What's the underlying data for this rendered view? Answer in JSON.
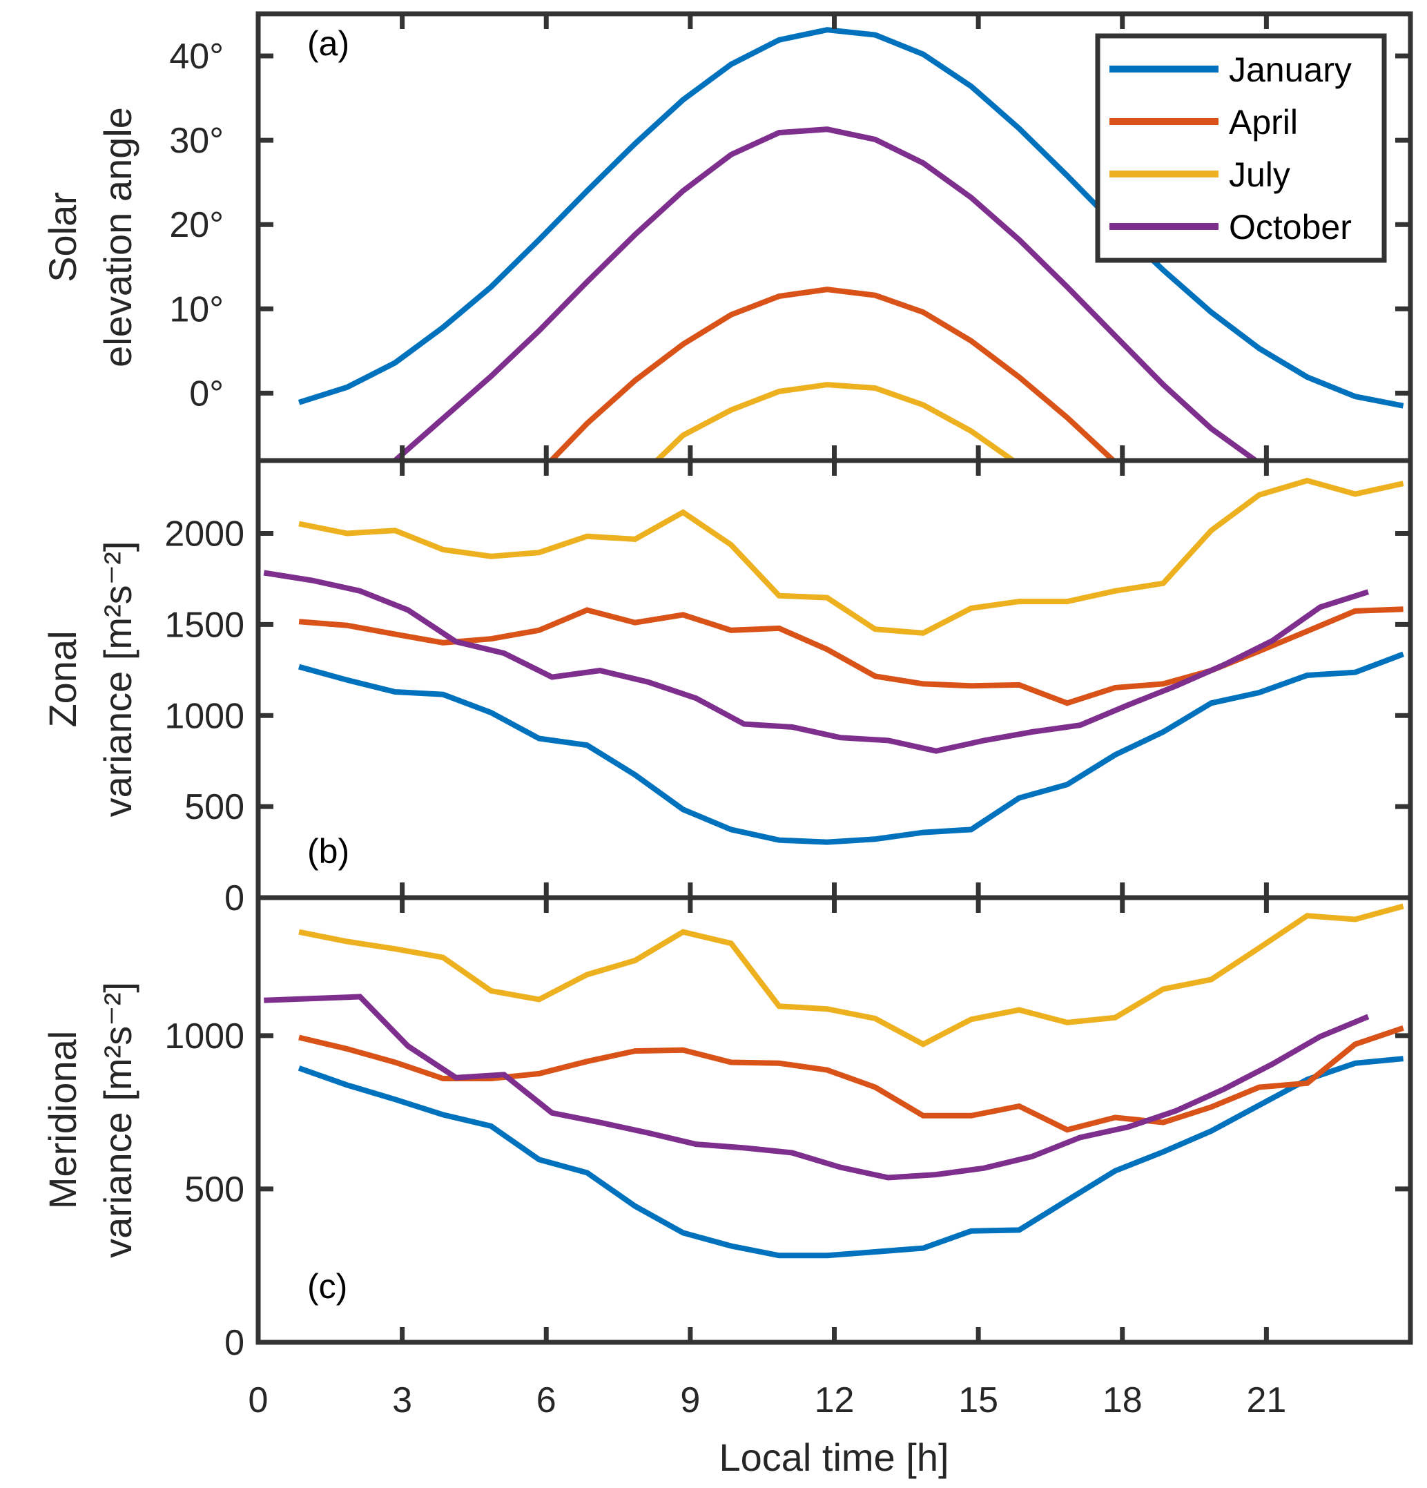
{
  "chart_data": {
    "type": "line",
    "xlabel": "Local time [h]",
    "xlim": [
      0,
      24
    ],
    "xticks": [
      0,
      3,
      6,
      9,
      12,
      15,
      18,
      21
    ],
    "legend": {
      "placement": "top-right of panel (a)",
      "entries": [
        "January",
        "April",
        "July",
        "October"
      ]
    },
    "colors": {
      "January": "#0072BD",
      "April": "#D95319",
      "July": "#EDB120",
      "October": "#7E2F8E",
      "axes": "#333333"
    },
    "panels": [
      {
        "id": "a",
        "panel_label": "(a)",
        "ylabel": [
          "Solar",
          "elevation angle"
        ],
        "ylim": [
          -8,
          45
        ],
        "yticks": [
          0,
          10,
          20,
          30,
          40
        ],
        "ytick_labels": [
          "0°",
          "10°",
          "20°",
          "30°",
          "40°"
        ],
        "series": [
          {
            "name": "January",
            "x": [
              0.85,
              1.85,
              2.85,
              3.85,
              4.85,
              5.85,
              6.85,
              7.85,
              8.85,
              9.85,
              10.85,
              11.85,
              12.85,
              13.85,
              14.85,
              15.85,
              16.85,
              17.85,
              18.85,
              19.85,
              20.85,
              21.85,
              22.85,
              23.85
            ],
            "values": [
              -1.1,
              0.7,
              3.6,
              7.8,
              12.6,
              18.2,
              24.0,
              29.6,
              34.8,
              39.0,
              41.9,
              43.1,
              42.5,
              40.2,
              36.4,
              31.4,
              25.8,
              20.0,
              14.6,
              9.6,
              5.3,
              1.9,
              -0.4,
              -1.5
            ]
          },
          {
            "name": "April",
            "x": [
              5.85,
              6.85,
              7.85,
              8.85,
              9.85,
              10.85,
              11.85,
              12.85,
              13.85,
              14.85,
              15.85,
              16.85,
              17.85,
              18.85
            ],
            "values": [
              -9.5,
              -3.6,
              1.5,
              5.8,
              9.3,
              11.5,
              12.3,
              11.6,
              9.6,
              6.2,
              1.9,
              -2.9,
              -8.2,
              -13.5
            ]
          },
          {
            "name": "July",
            "x": [
              7.85,
              8.85,
              9.85,
              10.85,
              11.85,
              12.85,
              13.85,
              14.85,
              15.85,
              16.85
            ],
            "values": [
              -10.5,
              -5.0,
              -2.0,
              0.2,
              1.0,
              0.6,
              -1.4,
              -4.5,
              -8.5,
              -13.0
            ]
          },
          {
            "name": "October",
            "x": [
              1.85,
              2.85,
              3.85,
              4.85,
              5.85,
              6.85,
              7.85,
              8.85,
              9.85,
              10.85,
              11.85,
              12.85,
              13.85,
              14.85,
              15.85,
              16.85,
              17.85,
              18.85,
              19.85,
              20.85,
              21.85
            ],
            "values": [
              -12.5,
              -8.0,
              -3.0,
              2.0,
              7.4,
              13.2,
              18.8,
              24.0,
              28.3,
              30.9,
              31.3,
              30.1,
              27.3,
              23.2,
              18.2,
              12.6,
              6.8,
              1.0,
              -4.2,
              -8.3,
              -12.5
            ]
          }
        ]
      },
      {
        "id": "b",
        "panel_label": "(b)",
        "ylabel": [
          "Zonal",
          "variance [m²s⁻²]"
        ],
        "ylim": [
          0,
          2400
        ],
        "yticks": [
          0,
          500,
          1000,
          1500,
          2000
        ],
        "ytick_labels": [
          "0",
          "500",
          "1000",
          "1500",
          "2000"
        ],
        "series": [
          {
            "name": "January",
            "x": [
              0.85,
              1.85,
              2.85,
              3.85,
              4.85,
              5.85,
              6.85,
              7.85,
              8.85,
              9.85,
              10.85,
              11.85,
              12.85,
              13.85,
              14.85,
              15.85,
              16.85,
              17.85,
              18.85,
              19.85,
              20.85,
              21.85,
              22.85,
              23.85
            ],
            "values": [
              1268,
              1195,
              1130,
              1116,
              1016,
              874,
              837,
              674,
              484,
              374,
              316,
              305,
              321,
              358,
              374,
              547,
              621,
              784,
              910,
              1068,
              1126,
              1221,
              1237,
              1337
            ]
          },
          {
            "name": "April",
            "x": [
              0.85,
              1.85,
              2.85,
              3.85,
              4.85,
              5.85,
              6.85,
              7.85,
              8.85,
              9.85,
              10.85,
              11.85,
              12.85,
              13.85,
              14.85,
              15.85,
              16.85,
              17.85,
              18.85,
              19.85,
              20.85,
              21.85,
              22.85,
              23.85
            ],
            "values": [
              1516,
              1495,
              1447,
              1400,
              1421,
              1468,
              1579,
              1510,
              1553,
              1468,
              1479,
              1363,
              1216,
              1174,
              1163,
              1168,
              1068,
              1153,
              1174,
              1247,
              1353,
              1463,
              1574,
              1584
            ]
          },
          {
            "name": "July",
            "x": [
              0.85,
              1.85,
              2.85,
              3.85,
              4.85,
              5.85,
              6.85,
              7.85,
              8.85,
              9.85,
              10.85,
              11.85,
              12.85,
              13.85,
              14.85,
              15.85,
              16.85,
              17.85,
              18.85,
              19.85,
              20.85,
              21.85,
              22.85,
              23.85
            ],
            "values": [
              2053,
              2000,
              2016,
              1911,
              1874,
              1895,
              1984,
              1968,
              2116,
              1937,
              1658,
              1647,
              1474,
              1453,
              1589,
              1626,
              1626,
              1684,
              1726,
              2016,
              2211,
              2290,
              2216,
              2274
            ]
          },
          {
            "name": "October",
            "x": [
              0.12,
              1.12,
              2.12,
              3.12,
              4.12,
              5.12,
              6.12,
              7.12,
              8.12,
              9.12,
              10.12,
              11.12,
              12.12,
              13.12,
              14.12,
              15.12,
              16.12,
              17.12,
              18.12,
              19.12,
              20.12,
              21.12,
              22.12,
              23.12
            ],
            "values": [
              1784,
              1742,
              1684,
              1579,
              1405,
              1342,
              1211,
              1247,
              1184,
              1095,
              953,
              937,
              879,
              863,
              805,
              863,
              910,
              947,
              1058,
              1163,
              1279,
              1410,
              1595,
              1679
            ]
          }
        ]
      },
      {
        "id": "c",
        "panel_label": "(c)",
        "ylabel": [
          "Meridional",
          "variance [m²s⁻²]"
        ],
        "ylim": [
          0,
          1450
        ],
        "yticks": [
          0,
          500,
          1000
        ],
        "ytick_labels": [
          "0",
          "500",
          "1000"
        ],
        "series": [
          {
            "name": "January",
            "x": [
              0.85,
              1.85,
              2.85,
              3.85,
              4.85,
              5.85,
              6.85,
              7.85,
              8.85,
              9.85,
              10.85,
              11.85,
              12.85,
              13.85,
              14.85,
              15.85,
              16.85,
              17.85,
              18.85,
              19.85,
              20.85,
              21.85,
              22.85,
              23.85
            ],
            "values": [
              894,
              839,
              792,
              742,
              705,
              596,
              553,
              444,
              357,
              314,
              283,
              283,
              295,
              307,
              363,
              366,
              463,
              559,
              621,
              689,
              773,
              857,
              910,
              925
            ]
          },
          {
            "name": "April",
            "x": [
              0.85,
              1.85,
              2.85,
              3.85,
              4.85,
              5.85,
              6.85,
              7.85,
              8.85,
              9.85,
              10.85,
              11.85,
              12.85,
              13.85,
              14.85,
              15.85,
              16.85,
              17.85,
              18.85,
              19.85,
              20.85,
              21.85,
              22.85,
              23.85
            ],
            "values": [
              994,
              957,
              913,
              860,
              860,
              876,
              916,
              950,
              953,
              913,
              910,
              888,
              832,
              739,
              739,
              770,
              693,
              733,
              717,
              767,
              832,
              845,
              972,
              1025
            ]
          },
          {
            "name": "July",
            "x": [
              0.85,
              1.85,
              2.85,
              3.85,
              4.85,
              5.85,
              6.85,
              7.85,
              8.85,
              9.85,
              10.85,
              11.85,
              12.85,
              13.85,
              14.85,
              15.85,
              16.85,
              17.85,
              18.85,
              19.85,
              20.85,
              21.85,
              22.85,
              23.85
            ],
            "values": [
              1338,
              1307,
              1283,
              1255,
              1146,
              1118,
              1199,
              1245,
              1338,
              1301,
              1096,
              1087,
              1056,
              972,
              1053,
              1084,
              1043,
              1059,
              1152,
              1183,
              1286,
              1391,
              1379,
              1422
            ]
          },
          {
            "name": "October",
            "x": [
              0.12,
              1.12,
              2.12,
              3.12,
              4.12,
              5.12,
              6.12,
              7.12,
              8.12,
              9.12,
              10.12,
              11.12,
              12.12,
              13.12,
              14.12,
              15.12,
              16.12,
              17.12,
              18.12,
              19.12,
              20.12,
              21.12,
              22.12,
              23.12
            ],
            "values": [
              1115,
              1121,
              1127,
              966,
              863,
              873,
              748,
              717,
              683,
              646,
              634,
              618,
              571,
              537,
              547,
              568,
              606,
              668,
              702,
              755,
              826,
              907,
              997,
              1062
            ]
          }
        ]
      }
    ]
  }
}
